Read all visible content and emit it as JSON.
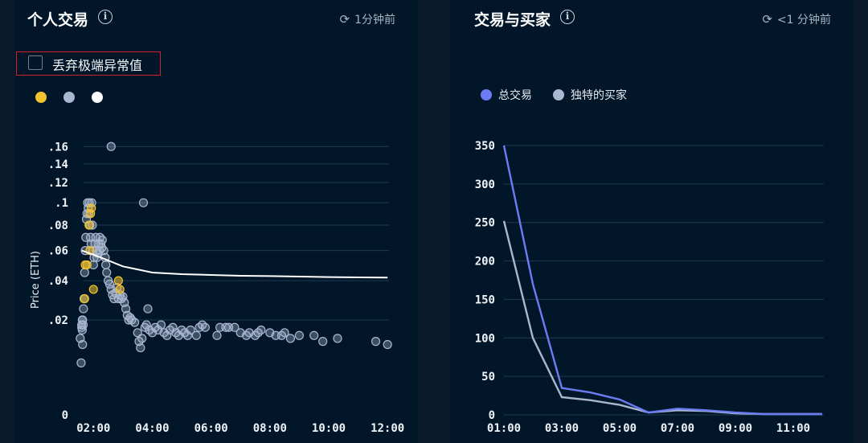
{
  "left_panel": {
    "title": "个人交易",
    "refresh_text": "1分钟前",
    "checkbox_label": "丢弃极端异常值",
    "legend_colors": [
      "#f2c230",
      "#a9b7d0",
      "#ffffff"
    ]
  },
  "right_panel": {
    "title": "交易与买家",
    "refresh_text": "<1 分钟前",
    "legend": [
      {
        "label": "总交易",
        "color": "#6b7cf5"
      },
      {
        "label": "独特的买家",
        "color": "#a9b7d0"
      }
    ]
  },
  "chart_data": [
    {
      "type": "scatter",
      "title": "个人交易",
      "ylabel": "Price (ETH)",
      "xlabel": "",
      "x_ticks": [
        "02:00",
        "04:00",
        "06:00",
        "08:00",
        "10:00",
        "12:00"
      ],
      "y_ticks": [
        ".16",
        ".14",
        ".12",
        ".1",
        ".08",
        ".06",
        ".04",
        ".02",
        "0"
      ],
      "x_range_hours": [
        1.5,
        12.05
      ],
      "y_scale": "sqrt",
      "y_range": [
        0,
        0.17
      ],
      "series": [
        {
          "color": "#f2c230",
          "points": [
            [
              1.7,
              0.03
            ],
            [
              1.72,
              0.05
            ],
            [
              1.78,
              0.05
            ],
            [
              1.85,
              0.08
            ],
            [
              1.9,
              0.09
            ],
            [
              1.93,
              0.095
            ],
            [
              2.0,
              0.035
            ],
            [
              2.85,
              0.04
            ],
            [
              2.9,
              0.035
            ],
            [
              1.88,
              0.06
            ]
          ]
        },
        {
          "color": "#a9b7d0",
          "points": [
            [
              1.55,
              0.013
            ],
            [
              1.58,
              0.006
            ],
            [
              1.6,
              0.017
            ],
            [
              1.62,
              0.02
            ],
            [
              1.63,
              0.02
            ],
            [
              1.65,
              0.018
            ],
            [
              1.66,
              0.025
            ],
            [
              1.68,
              0.03
            ],
            [
              1.7,
              0.045
            ],
            [
              1.72,
              0.06
            ],
            [
              1.74,
              0.07
            ],
            [
              1.76,
              0.085
            ],
            [
              1.78,
              0.09
            ],
            [
              1.8,
              0.1
            ],
            [
              1.82,
              0.095
            ],
            [
              1.84,
              0.09
            ],
            [
              1.86,
              0.1
            ],
            [
              1.88,
              0.08
            ],
            [
              1.9,
              0.07
            ],
            [
              1.92,
              0.065
            ],
            [
              1.94,
              0.1
            ],
            [
              1.96,
              0.08
            ],
            [
              1.98,
              0.06
            ],
            [
              2.0,
              0.05
            ],
            [
              2.02,
              0.055
            ],
            [
              2.05,
              0.065
            ],
            [
              2.08,
              0.07
            ],
            [
              2.1,
              0.06
            ],
            [
              2.12,
              0.055
            ],
            [
              2.15,
              0.058
            ],
            [
              2.18,
              0.065
            ],
            [
              2.2,
              0.06
            ],
            [
              2.22,
              0.07
            ],
            [
              2.25,
              0.065
            ],
            [
              2.28,
              0.062
            ],
            [
              2.3,
              0.068
            ],
            [
              2.35,
              0.06
            ],
            [
              2.4,
              0.055
            ],
            [
              2.42,
              0.05
            ],
            [
              2.45,
              0.045
            ],
            [
              2.5,
              0.04
            ],
            [
              2.55,
              0.038
            ],
            [
              2.6,
              0.035
            ],
            [
              2.65,
              0.032
            ],
            [
              2.7,
              0.03
            ],
            [
              2.75,
              0.033
            ],
            [
              2.8,
              0.036
            ],
            [
              2.85,
              0.03
            ],
            [
              2.9,
              0.032
            ],
            [
              2.95,
              0.03
            ],
            [
              3.0,
              0.031
            ],
            [
              3.05,
              0.028
            ],
            [
              3.1,
              0.025
            ],
            [
              3.15,
              0.022
            ],
            [
              3.2,
              0.02
            ],
            [
              3.25,
              0.021
            ],
            [
              3.3,
              0.02
            ],
            [
              3.4,
              0.019
            ],
            [
              3.5,
              0.015
            ],
            [
              3.55,
              0.012
            ],
            [
              3.6,
              0.01
            ],
            [
              3.65,
              0.013
            ],
            [
              3.7,
              0.1
            ],
            [
              3.75,
              0.017
            ],
            [
              3.8,
              0.018
            ],
            [
              3.85,
              0.025
            ],
            [
              3.9,
              0.016
            ],
            [
              4.0,
              0.015
            ],
            [
              4.1,
              0.017
            ],
            [
              4.2,
              0.016
            ],
            [
              4.3,
              0.018
            ],
            [
              4.4,
              0.015
            ],
            [
              4.5,
              0.014
            ],
            [
              4.6,
              0.016
            ],
            [
              4.7,
              0.017
            ],
            [
              4.8,
              0.015
            ],
            [
              4.9,
              0.014
            ],
            [
              5.0,
              0.016
            ],
            [
              5.1,
              0.015
            ],
            [
              5.2,
              0.014
            ],
            [
              5.3,
              0.016
            ],
            [
              5.5,
              0.014
            ],
            [
              5.6,
              0.017
            ],
            [
              5.7,
              0.018
            ],
            [
              5.8,
              0.017
            ],
            [
              6.2,
              0.014
            ],
            [
              6.3,
              0.017
            ],
            [
              6.5,
              0.017
            ],
            [
              6.6,
              0.017
            ],
            [
              6.8,
              0.017
            ],
            [
              7.0,
              0.015
            ],
            [
              7.2,
              0.014
            ],
            [
              7.3,
              0.015
            ],
            [
              7.5,
              0.014
            ],
            [
              7.6,
              0.015
            ],
            [
              7.7,
              0.016
            ],
            [
              8.0,
              0.015
            ],
            [
              8.2,
              0.014
            ],
            [
              8.4,
              0.014
            ],
            [
              8.5,
              0.015
            ],
            [
              8.7,
              0.013
            ],
            [
              9.0,
              0.014
            ],
            [
              9.5,
              0.014
            ],
            [
              9.8,
              0.012
            ],
            [
              10.3,
              0.013
            ],
            [
              11.6,
              0.012
            ],
            [
              12.0,
              0.011
            ],
            [
              1.63,
              0.011
            ],
            [
              2.6,
              0.16
            ],
            [
              1.6,
              0.018
            ],
            [
              1.62,
              0.016
            ]
          ]
        }
      ],
      "trend_line": {
        "color": "#ffffff",
        "points": [
          [
            1.6,
            0.06
          ],
          [
            2.0,
            0.057
          ],
          [
            2.5,
            0.053
          ],
          [
            3.0,
            0.049
          ],
          [
            3.5,
            0.047
          ],
          [
            4.0,
            0.045
          ],
          [
            5.0,
            0.044
          ],
          [
            6.0,
            0.0435
          ],
          [
            7.0,
            0.043
          ],
          [
            8.0,
            0.0428
          ],
          [
            9.0,
            0.0425
          ],
          [
            10.0,
            0.0422
          ],
          [
            11.0,
            0.042
          ],
          [
            12.0,
            0.0419
          ]
        ]
      }
    },
    {
      "type": "line",
      "title": "交易与买家",
      "x_ticks": [
        "01:00",
        "03:00",
        "05:00",
        "07:00",
        "09:00",
        "11:00"
      ],
      "y_ticks": [
        "0",
        "50",
        "100",
        "150",
        "200",
        "250",
        "300",
        "350"
      ],
      "ylim": [
        0,
        350
      ],
      "x": [
        "01:00",
        "02:00",
        "03:00",
        "04:00",
        "05:00",
        "06:00",
        "07:00",
        "08:00",
        "09:00",
        "10:00",
        "11:00",
        "12:00"
      ],
      "series": [
        {
          "name": "总交易",
          "color": "#6b7cf5",
          "values": [
            350,
            170,
            35,
            29,
            20,
            3,
            8,
            6,
            3,
            1,
            1,
            1
          ]
        },
        {
          "name": "独特的买家",
          "color": "#a9b7d0",
          "values": [
            252,
            100,
            23,
            19,
            13,
            3,
            6,
            5,
            2,
            1,
            1,
            1
          ]
        }
      ]
    }
  ]
}
